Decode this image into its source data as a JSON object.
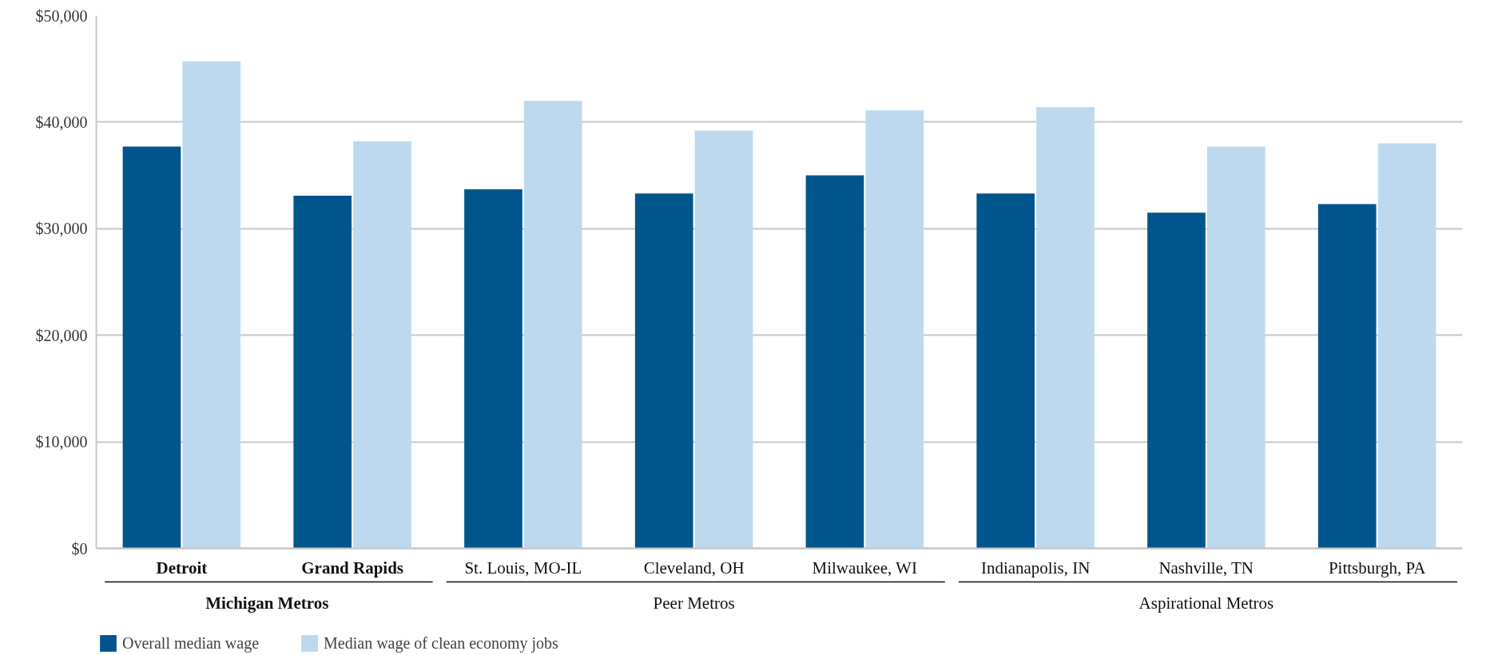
{
  "chart_data": {
    "type": "bar",
    "categories": [
      "Detroit",
      "Grand Rapids",
      "St. Louis, MO-IL",
      "Cleveland, OH",
      "Milwaukee, WI",
      "Indianapolis, IN",
      "Nashville, TN",
      "Pittsburgh, PA"
    ],
    "series": [
      {
        "name": "Overall median wage",
        "color": "#00568c",
        "values": [
          37700,
          33100,
          33700,
          33300,
          35000,
          33300,
          31500,
          32300
        ]
      },
      {
        "name": "Median wage of clean economy jobs",
        "color": "#bdd9f0",
        "values": [
          45700,
          38200,
          42000,
          39200,
          41100,
          41400,
          37700,
          38000
        ]
      }
    ],
    "annotations": [
      "Michigan Metros",
      "Peer Metros",
      "Aspirational Metros"
    ],
    "ylim": [
      0,
      50000
    ],
    "yticks": [
      {
        "value": 0,
        "label": "$0"
      },
      {
        "value": 10000,
        "label": "$10,000"
      },
      {
        "value": 20000,
        "label": "$20,000"
      },
      {
        "value": 30000,
        "label": "$30,000"
      },
      {
        "value": 40000,
        "label": "$40,000"
      },
      {
        "value": 50000,
        "label": "$50,000"
      }
    ],
    "grid": "y",
    "legend": "bottom left"
  }
}
